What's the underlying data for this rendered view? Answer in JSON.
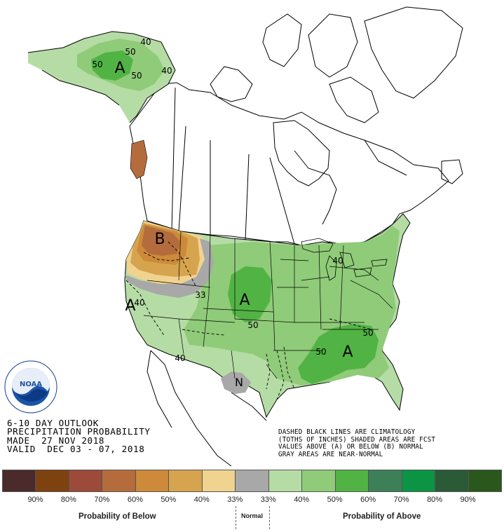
{
  "map": {
    "colors": {
      "below_60": "#b46c3c",
      "below_50": "#cd8a3a",
      "below_40": "#d6a44e",
      "below_33": "#f0d38f",
      "near_normal": "#a8a8a8",
      "above_33": "#b5dca5",
      "above_40": "#8fcb78",
      "above_50": "#52b345",
      "above_60": "#2f9a33"
    },
    "region_labels": {
      "alaska_above": "A",
      "northwest_below": "B",
      "california_above": "A",
      "plains_above": "A",
      "southeast_above": "A",
      "southwest_normal": "N"
    },
    "contour_labels": {
      "ak_40a": "40",
      "ak_50a": "50",
      "ak_50b": "50",
      "ak_50c": "50",
      "ak_40b": "40",
      "nw_33": "33",
      "ca_40": "40",
      "plains_50": "50",
      "sw_40": "40",
      "se_50a": "50",
      "se_50b": "50",
      "gl_40": "40"
    }
  },
  "logo": {
    "name": "NOAA",
    "icon": "noaa-logo"
  },
  "info": {
    "line1": "6-10 DAY OUTLOOK",
    "line2": "PRECIPITATION PROBABILITY",
    "line3": "MADE  27 NOV 2018",
    "line4": "VALID  DEC 03 - 07, 2018"
  },
  "note": {
    "line1": "DASHED BLACK LINES ARE CLIMATOLOGY",
    "line2": "(TOTHS OF INCHES) SHADED AREAS ARE FCST",
    "line3": "VALUES ABOVE (A) OR BELOW (B) NORMAL",
    "line4": "GRAY AREAS ARE NEAR-NORMAL"
  },
  "legend": {
    "swatches": [
      "#4a2a2a",
      "#7e4210",
      "#9c4a3a",
      "#b46c3c",
      "#cd8a3a",
      "#d6a44e",
      "#f0d38f",
      "#a8a8a8",
      "#b5dca5",
      "#8fcb78",
      "#52b345",
      "#3d7f57",
      "#0a9444",
      "#2b5a37",
      "#2a571c"
    ],
    "ticks": [
      "90%",
      "80%",
      "70%",
      "60%",
      "50%",
      "40%",
      "33%",
      "33%",
      "40%",
      "50%",
      "60%",
      "70%",
      "80%",
      "90%"
    ],
    "below_label": "Probability of Below",
    "normal_label": "Normal",
    "above_label": "Probability of Above"
  }
}
